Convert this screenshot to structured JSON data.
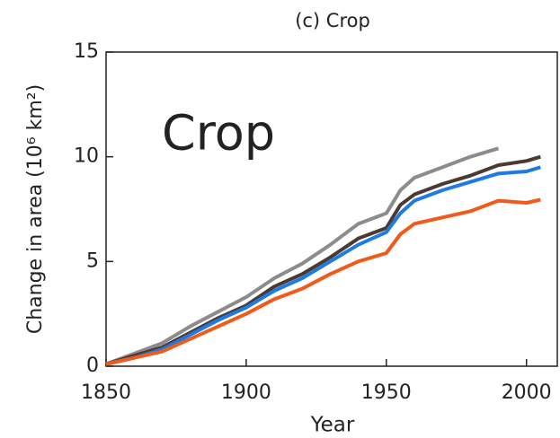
{
  "chart_data": {
    "type": "line",
    "title": "(c) Crop",
    "annotation": "Crop",
    "xlabel": "Year",
    "ylabel": "Change in area (10⁶ km²)",
    "x": [
      1850,
      1860,
      1870,
      1880,
      1890,
      1900,
      1910,
      1920,
      1930,
      1940,
      1950,
      1955,
      1960,
      1970,
      1980,
      1990,
      2000,
      2005
    ],
    "series": [
      {
        "color": "#8c8c8c",
        "values": [
          0.1,
          0.6,
          1.1,
          1.9,
          2.6,
          3.3,
          4.2,
          4.9,
          5.8,
          6.8,
          7.3,
          8.4,
          9.0,
          9.5,
          10.0,
          10.4,
          null,
          null
        ]
      },
      {
        "color": "#4a3a30",
        "values": [
          0.1,
          0.5,
          0.9,
          1.6,
          2.3,
          2.9,
          3.8,
          4.4,
          5.2,
          6.1,
          6.6,
          7.7,
          8.2,
          8.7,
          9.1,
          9.6,
          9.8,
          10.0
        ]
      },
      {
        "color": "#1e7be6",
        "values": [
          0.1,
          0.4,
          0.8,
          1.5,
          2.2,
          2.8,
          3.6,
          4.2,
          5.0,
          5.8,
          6.4,
          7.3,
          7.9,
          8.4,
          8.8,
          9.2,
          9.3,
          9.5
        ]
      },
      {
        "color": "#f05a1a",
        "values": [
          0.1,
          0.4,
          0.7,
          1.3,
          1.9,
          2.5,
          3.2,
          3.7,
          4.4,
          5.0,
          5.4,
          6.3,
          6.8,
          7.1,
          7.4,
          7.9,
          7.8,
          7.95
        ]
      }
    ],
    "xlim": [
      1850,
      2011
    ],
    "ylim": [
      0,
      15
    ],
    "xticks": [
      1850,
      1900,
      1950,
      2000
    ],
    "yticks": [
      0,
      5,
      10,
      15
    ]
  }
}
